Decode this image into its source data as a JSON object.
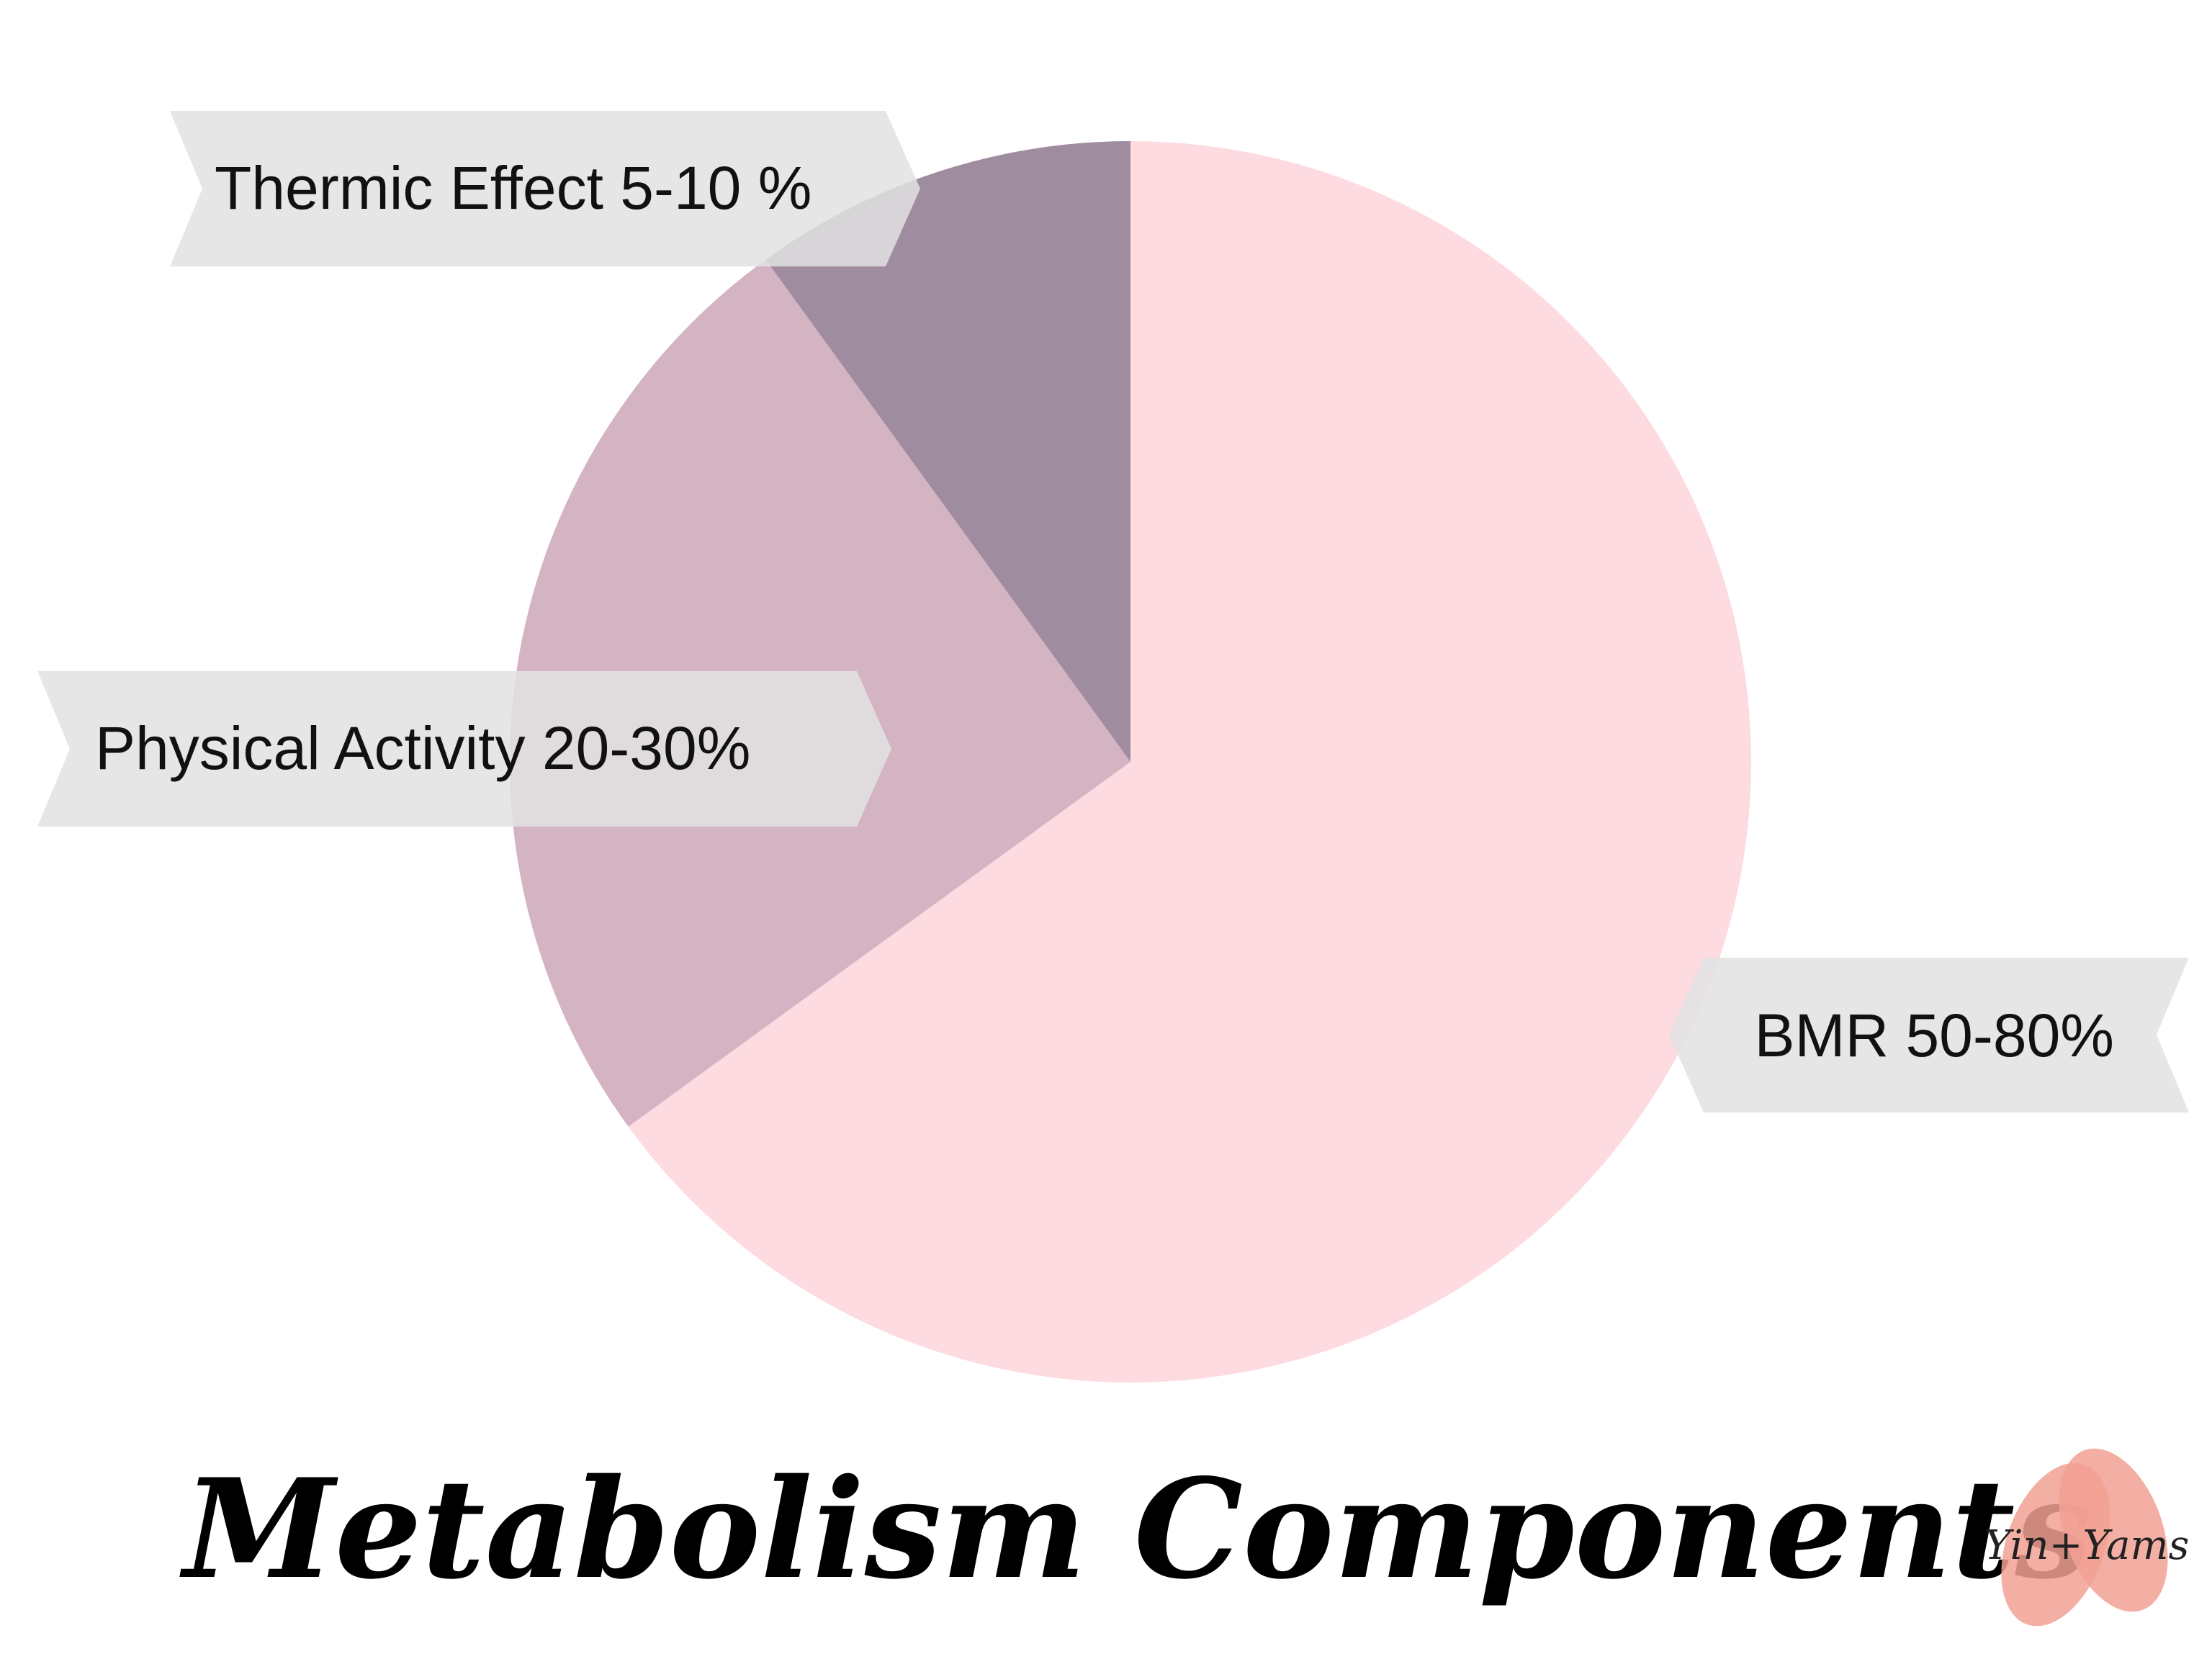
{
  "chart_data": {
    "type": "pie",
    "title": "Metabolism Components",
    "slices": [
      {
        "label": "BMR 50-80%",
        "value": 65,
        "color": "#fddbe0"
      },
      {
        "label": "Physical Activity 20-30%",
        "value": 25,
        "color": "#d4b3c2"
      },
      {
        "label": "Thermic Effect 5-10 %",
        "value": 10,
        "color": "#a08c9f"
      }
    ],
    "label_banner_color": "#e2e2e2",
    "legend": "none"
  },
  "logo": {
    "text": "Yin+Yams",
    "color": "#f2a194"
  }
}
